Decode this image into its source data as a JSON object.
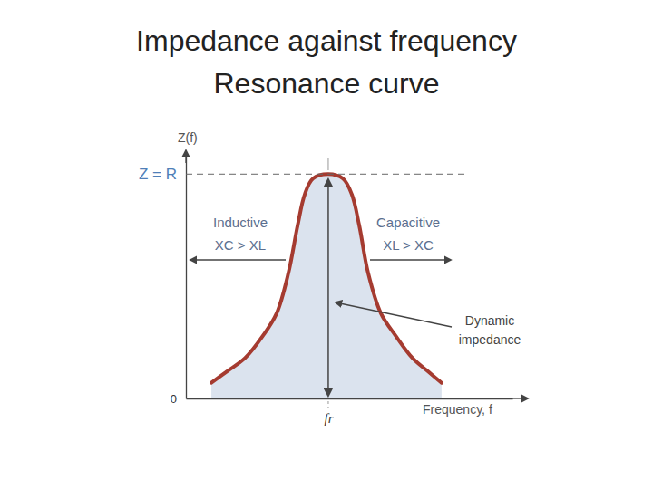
{
  "chart_data": {
    "type": "area",
    "title": "Impedance against frequency",
    "subtitle": "Resonance curve",
    "x_label": "Frequency, f",
    "y_label": "Z(f)",
    "annotations": [
      "Inductive",
      "XC > XL",
      "Capacitive",
      "XL > XC",
      "Dynamic",
      "impedance"
    ],
    "x": [
      0.78,
      1.25,
      1.81,
      2.36,
      2.78,
      3.14,
      3.42,
      3.64,
      3.89,
      4.36,
      4.81,
      5.08,
      5.31,
      5.58,
      5.97,
      6.42,
      6.94,
      7.42,
      7.83
    ],
    "values": [
      0.07,
      0.12,
      0.18,
      0.28,
      0.38,
      0.56,
      0.77,
      0.91,
      0.98,
      1.0,
      0.98,
      0.91,
      0.77,
      0.56,
      0.38,
      0.28,
      0.18,
      0.12,
      0.07
    ],
    "color": "#a53b30",
    "xlim": [
      0,
      10
    ],
    "ylim": [
      0,
      1.09
    ],
    "xticks": [
      {
        "value": 4.36,
        "label": "fr"
      }
    ],
    "yticks": [
      0,
      {
        "value": 1,
        "label": "Z = R"
      }
    ]
  }
}
